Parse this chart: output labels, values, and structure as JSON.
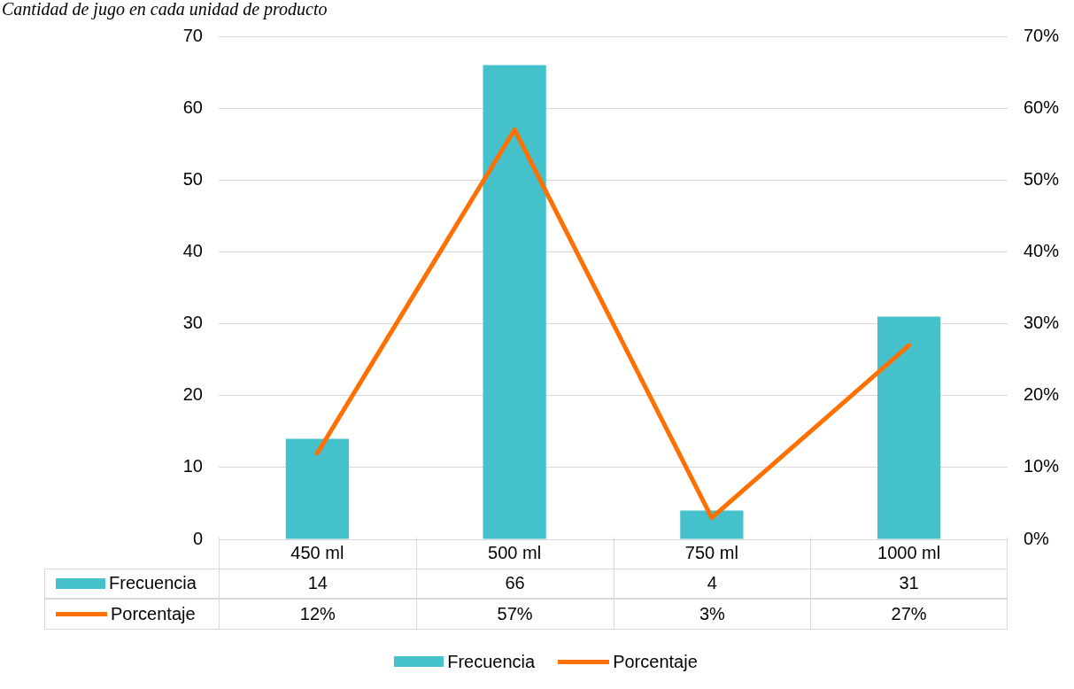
{
  "chart_data": {
    "type": "bar",
    "title": "Cantidad de jugo en cada unidad de producto",
    "categories": [
      "450 ml",
      "500 ml",
      "750 ml",
      "1000 ml"
    ],
    "series": [
      {
        "name": "Frecuencia",
        "color": "#45c1cc",
        "values": [
          14,
          66,
          4,
          31
        ],
        "value_labels": [
          "14",
          "66",
          "4",
          "31"
        ]
      },
      {
        "name": "Porcentaje",
        "type": "line",
        "axis": "y2",
        "color": "#ff7000",
        "values": [
          12,
          57,
          3,
          27
        ],
        "value_labels": [
          "12%",
          "57%",
          "3%",
          "27%"
        ]
      }
    ],
    "ylim": [
      0,
      70
    ],
    "yticks": [
      0,
      10,
      20,
      30,
      40,
      50,
      60,
      70
    ],
    "y2lim": [
      0,
      70
    ],
    "y2ticks": [
      {
        "value": 0,
        "label": "0%"
      },
      {
        "value": 10,
        "label": "10%"
      },
      {
        "value": 20,
        "label": "20%"
      },
      {
        "value": 30,
        "label": "30%"
      },
      {
        "value": 40,
        "label": "40%"
      },
      {
        "value": 50,
        "label": "50%"
      },
      {
        "value": 60,
        "label": "60%"
      },
      {
        "value": 70,
        "label": "70%"
      }
    ],
    "grid": "y",
    "legend": "bottom",
    "marker": "none",
    "line_style": "solid"
  }
}
